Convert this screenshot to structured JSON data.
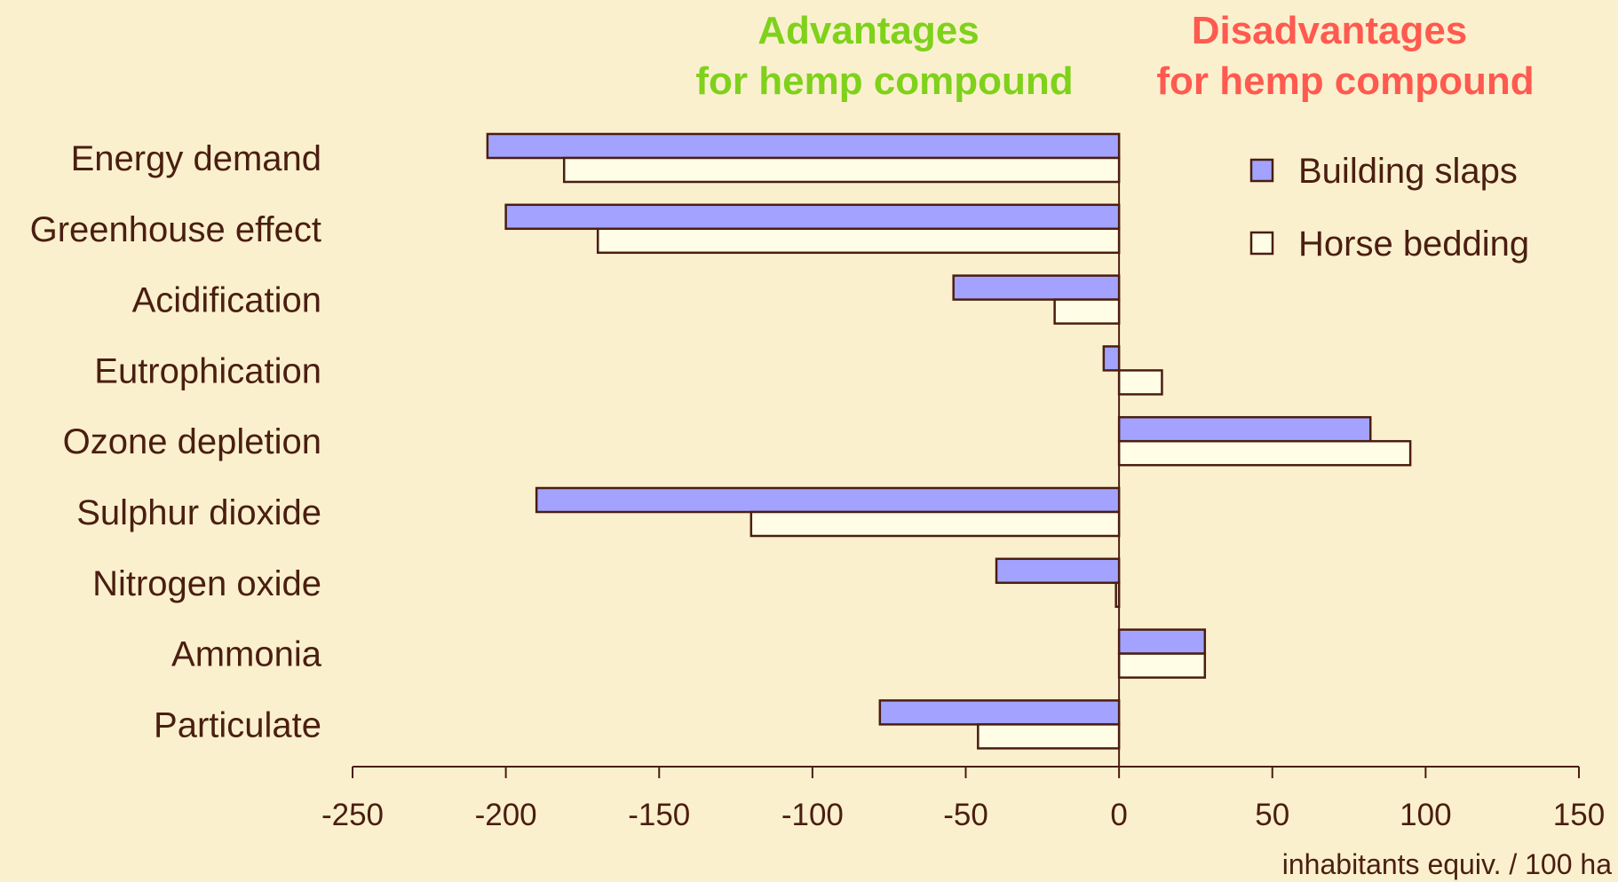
{
  "chart_data": {
    "type": "bar",
    "orientation": "horizontal",
    "categories": [
      "Energy demand",
      "Greenhouse effect",
      "Acidification",
      "Eutrophication",
      "Ozone depletion",
      "Sulphur dioxide",
      "Nitrogen oxide",
      "Ammonia",
      "Particulate"
    ],
    "series": [
      {
        "name": "Building slaps",
        "values": [
          -206,
          -200,
          -54,
          -5,
          82,
          -190,
          -40,
          28,
          -78
        ],
        "color": "#A3A3FF"
      },
      {
        "name": "Horse bedding",
        "values": [
          -181,
          -170,
          -21,
          14,
          95,
          -120,
          -1,
          28,
          -46
        ],
        "color": "#FFFDE6"
      }
    ],
    "xlim": [
      -250,
      150
    ],
    "xticks": [
      -250,
      -200,
      -150,
      -100,
      -50,
      0,
      50,
      100,
      150
    ],
    "xlabel": "inhabitants equiv. / 100 ha",
    "legend_position": "top-right",
    "bar_edge_color": "#4A1E10",
    "annotations": {
      "advantages": {
        "lines": [
          "Advantages",
          "for hemp compound"
        ],
        "color": "#7FD11B"
      },
      "disadvantages": {
        "lines": [
          "Disadvantages",
          "for hemp compound"
        ],
        "color": "#FF5A4F"
      }
    }
  }
}
